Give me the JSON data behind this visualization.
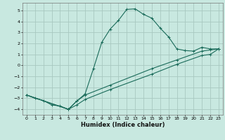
{
  "xlabel": "Humidex (Indice chaleur)",
  "ylabel": "",
  "xlim": [
    -0.5,
    23.5
  ],
  "ylim": [
    -4.5,
    5.7
  ],
  "xticks": [
    0,
    1,
    2,
    3,
    4,
    5,
    6,
    7,
    8,
    9,
    10,
    11,
    12,
    13,
    14,
    15,
    16,
    17,
    18,
    19,
    20,
    21,
    22,
    23
  ],
  "yticks": [
    -4,
    -3,
    -2,
    -1,
    0,
    1,
    2,
    3,
    4,
    5
  ],
  "bg_color": "#c8e8e0",
  "grid_color": "#a8c8c0",
  "line_color": "#1a6b5a",
  "curve1_x": [
    0,
    1,
    2,
    3,
    4,
    5,
    6,
    7,
    8,
    9,
    10,
    11,
    12,
    13,
    14,
    15,
    16,
    17,
    18,
    19,
    20,
    21,
    22,
    23
  ],
  "curve1_y": [
    -2.7,
    -3.0,
    -3.2,
    -3.6,
    -3.7,
    -4.0,
    -3.25,
    -2.6,
    -0.3,
    2.1,
    3.3,
    4.1,
    5.1,
    5.15,
    4.65,
    4.3,
    3.4,
    2.6,
    1.5,
    1.35,
    1.3,
    1.65,
    1.5,
    1.5
  ],
  "curve2_x": [
    0,
    5,
    6,
    7,
    10,
    15,
    18,
    21,
    22,
    23
  ],
  "curve2_y": [
    -2.7,
    -4.0,
    -3.25,
    -2.7,
    -1.8,
    -0.3,
    0.5,
    1.3,
    1.4,
    1.5
  ],
  "curve3_x": [
    0,
    5,
    6,
    7,
    10,
    15,
    18,
    21,
    22,
    23
  ],
  "curve3_y": [
    -2.7,
    -4.0,
    -3.6,
    -3.1,
    -2.2,
    -0.8,
    0.1,
    0.9,
    1.0,
    1.5
  ],
  "tick_fontsize": 4.5,
  "xlabel_fontsize": 6.0,
  "linewidth": 0.8,
  "markersize": 3.0
}
